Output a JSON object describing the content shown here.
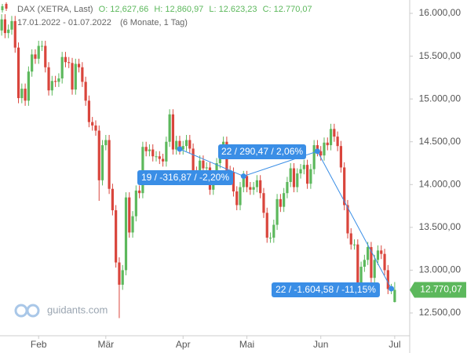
{
  "chart_data": {
    "type": "candlestick",
    "instrument": "DAX (XETRA, Last)",
    "ohlc_labels": [
      "O: 12,627,66",
      "H: 12,860,97",
      "L: 12.623,23",
      "C: 12.770,07"
    ],
    "period": "17.01.2022 - 01.07.2022",
    "period_note": "(6 Monate, 1 Tag)",
    "watermark": "guidants.com",
    "colors": {
      "up": "#5cb85c",
      "down": "#d9453c",
      "annotation": "#3a8ee6"
    },
    "xlim": [
      -0.5,
      121
    ],
    "xticks": [
      {
        "value": 11,
        "label": "Feb"
      },
      {
        "value": 31,
        "label": "Mär"
      },
      {
        "value": 54,
        "label": "Apr"
      },
      {
        "value": 73,
        "label": "Mai"
      },
      {
        "value": 95,
        "label": "Jun"
      },
      {
        "value": 117,
        "label": "Jul"
      }
    ],
    "ylim": [
      12234,
      16156
    ],
    "yticks": [
      {
        "value": 12500,
        "label": "12.500,00"
      },
      {
        "value": 13000,
        "label": "13.000,00"
      },
      {
        "value": 13500,
        "label": "13.500,00"
      },
      {
        "value": 14000,
        "label": "14.000,00"
      },
      {
        "value": 14500,
        "label": "14.500,00"
      },
      {
        "value": 15000,
        "label": "15.000,00"
      },
      {
        "value": 15500,
        "label": "15.500,00"
      },
      {
        "value": 16000,
        "label": "16.000,00"
      }
    ],
    "last_price": {
      "value": 12770.07,
      "label": "12.770,07"
    },
    "open": [
      15800,
      15930,
      15770,
      15810,
      15910,
      15600,
      15010,
      15120,
      14980,
      15320,
      15520,
      15470,
      15620,
      15620,
      15370,
      15100,
      15210,
      15200,
      15240,
      15490,
      15430,
      15420,
      15110,
      15410,
      15370,
      15200,
      14980,
      14730,
      14690,
      14630,
      14050,
      14460,
      14520,
      13950,
      13700,
      13090,
      12830,
      13000,
      13850,
      13440,
      13630,
      13930,
      13900,
      14440,
      14390,
      14410,
      14330,
      14330,
      14300,
      14270,
      14500,
      14820,
      14410,
      14510,
      14410,
      14450,
      14520,
      14420,
      14150,
      14080,
      14280,
      14190,
      14200,
      13940,
      14080,
      14250,
      14370,
      14500,
      14160,
      14140,
      13920,
      13760,
      13970,
      14100,
      13970,
      13940,
      13970,
      14050,
      13900,
      13670,
      13380,
      13380,
      13530,
      13830,
      13740,
      13900,
      14030,
      14190,
      13970,
      14130,
      14180,
      14230,
      14010,
      14180,
      14460,
      14390,
      14340,
      14490,
      14460,
      14650,
      14560,
      14450,
      14200,
      13760,
      13430,
      13300,
      13300,
      12830,
      13040,
      13120,
      13270,
      12910,
      13120,
      13230,
      13190,
      13000,
      12780,
      12627.66
    ],
    "high": [
      15990,
      15990,
      15870,
      15970,
      15970,
      15660,
      15180,
      15180,
      15380,
      15580,
      15580,
      15680,
      15680,
      15680,
      15430,
      15270,
      15270,
      15300,
      15550,
      15550,
      15490,
      15480,
      15470,
      15470,
      15430,
      15260,
      15040,
      14790,
      14750,
      14690,
      14520,
      14580,
      14580,
      14010,
      13760,
      13150,
      13060,
      13910,
      13910,
      13690,
      13990,
      13990,
      14500,
      14500,
      14470,
      14470,
      14390,
      14390,
      14360,
      14560,
      14880,
      14880,
      14570,
      14570,
      14510,
      14580,
      14580,
      14480,
      14210,
      14340,
      14340,
      14260,
      14260,
      14140,
      14310,
      14430,
      14560,
      14560,
      14220,
      14200,
      13980,
      14030,
      14160,
      14160,
      14030,
      14030,
      14110,
      14110,
      13960,
      13730,
      13440,
      13590,
      13890,
      13890,
      13960,
      14090,
      14250,
      14250,
      14190,
      14240,
      14290,
      14290,
      14240,
      14520,
      14520,
      14450,
      14550,
      14550,
      14710,
      14710,
      14620,
      14510,
      14260,
      13820,
      13490,
      13360,
      13360,
      13100,
      13180,
      13330,
      13330,
      13180,
      13290,
      13290,
      13250,
      13060,
      12840,
      12860.97
    ],
    "low": [
      15740,
      15710,
      15710,
      15750,
      15540,
      14950,
      14950,
      14920,
      14920,
      15260,
      15410,
      15410,
      15560,
      15310,
      15040,
      15040,
      15140,
      15140,
      15180,
      15370,
      15360,
      15050,
      15050,
      15310,
      15140,
      14920,
      14670,
      14630,
      14570,
      13810,
      13990,
      14400,
      13890,
      13640,
      13030,
      12440,
      12770,
      12940,
      13380,
      13380,
      13570,
      13840,
      13840,
      14330,
      14330,
      14270,
      14270,
      14240,
      14210,
      14210,
      14440,
      14350,
      14350,
      14350,
      14350,
      14390,
      14360,
      14090,
      14020,
      14020,
      14130,
      14130,
      13880,
      13880,
      14020,
      14190,
      14310,
      14100,
      14080,
      13860,
      13700,
      13700,
      13910,
      13910,
      13880,
      13880,
      13910,
      13840,
      13610,
      13320,
      13320,
      13320,
      13470,
      13680,
      13680,
      13840,
      13970,
      13910,
      13910,
      14070,
      14120,
      13950,
      13950,
      14120,
      14330,
      14280,
      14280,
      14400,
      14400,
      14500,
      14390,
      14140,
      13700,
      13370,
      13240,
      13240,
      12770,
      12770,
      12980,
      13060,
      12850,
      12850,
      13060,
      13130,
      12940,
      12720,
      12720,
      12623.23
    ],
    "close": [
      15930,
      15770,
      15810,
      15910,
      15600,
      15010,
      15120,
      14980,
      15320,
      15520,
      15470,
      15620,
      15620,
      15370,
      15100,
      15210,
      15200,
      15240,
      15490,
      15430,
      15420,
      15110,
      15410,
      15370,
      15200,
      14980,
      14730,
      14690,
      14630,
      14050,
      14460,
      14520,
      13950,
      13700,
      13090,
      12830,
      13000,
      13850,
      13440,
      13630,
      13930,
      13900,
      14440,
      14390,
      14410,
      14330,
      14330,
      14300,
      14270,
      14500,
      14820,
      14410,
      14510,
      14410,
      14450,
      14520,
      14420,
      14150,
      14080,
      14280,
      14190,
      14200,
      13940,
      14080,
      14250,
      14370,
      14500,
      14160,
      14140,
      13920,
      13760,
      13970,
      14100,
      13970,
      13940,
      13970,
      14050,
      13900,
      13670,
      13380,
      13380,
      13530,
      13830,
      13740,
      13900,
      14030,
      14190,
      13970,
      14130,
      14180,
      14230,
      14010,
      14180,
      14460,
      14390,
      14340,
      14490,
      14460,
      14650,
      14560,
      14450,
      14200,
      13760,
      13430,
      13300,
      13300,
      12830,
      13040,
      13120,
      13270,
      12910,
      13120,
      13230,
      13190,
      13000,
      12780,
      12780,
      12770.07
    ],
    "trendline": {
      "x": [
        53,
        72,
        94,
        116
      ],
      "y": [
        14415,
        14098.13,
        14388.6,
        12784.02
      ]
    },
    "annotations": [
      "19 / -316,87 / -2,20%",
      "22 / 290,47 / 2,06%",
      "22 / -1.604,58 / -11,15%"
    ]
  }
}
